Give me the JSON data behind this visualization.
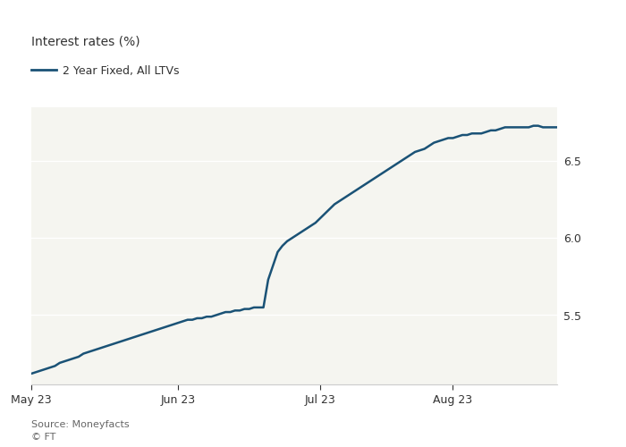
{
  "title": "Interest rates (%)",
  "legend_label": "2 Year Fixed, All LTVs",
  "line_color": "#1a5276",
  "background_color": "#ffffff",
  "plot_bg_color": "#f5f5f0",
  "grid_color": "#ffffff",
  "text_color": "#333333",
  "axis_color": "#cccccc",
  "source_text": "Source: Moneyfacts\n© FT",
  "yticks": [
    5.5,
    6.0,
    6.5
  ],
  "ylim": [
    5.05,
    6.85
  ],
  "x_tick_labels": [
    "May 23",
    "Jun 23",
    "Jul 23",
    "Aug 23"
  ],
  "x_tick_positions": [
    0,
    31,
    61,
    89
  ],
  "data_points": [
    5.12,
    5.13,
    5.14,
    5.15,
    5.16,
    5.17,
    5.19,
    5.2,
    5.21,
    5.22,
    5.23,
    5.25,
    5.26,
    5.27,
    5.28,
    5.29,
    5.3,
    5.31,
    5.32,
    5.33,
    5.34,
    5.35,
    5.36,
    5.37,
    5.38,
    5.39,
    5.4,
    5.41,
    5.42,
    5.43,
    5.44,
    5.45,
    5.46,
    5.47,
    5.47,
    5.48,
    5.48,
    5.49,
    5.49,
    5.5,
    5.51,
    5.52,
    5.52,
    5.53,
    5.53,
    5.54,
    5.54,
    5.55,
    5.55,
    5.55,
    5.73,
    5.82,
    5.91,
    5.95,
    5.98,
    6.0,
    6.02,
    6.04,
    6.06,
    6.08,
    6.1,
    6.13,
    6.16,
    6.19,
    6.22,
    6.24,
    6.26,
    6.28,
    6.3,
    6.32,
    6.34,
    6.36,
    6.38,
    6.4,
    6.42,
    6.44,
    6.46,
    6.48,
    6.5,
    6.52,
    6.54,
    6.56,
    6.57,
    6.58,
    6.6,
    6.62,
    6.63,
    6.64,
    6.65,
    6.65,
    6.66,
    6.67,
    6.67,
    6.68,
    6.68,
    6.68,
    6.69,
    6.7,
    6.7,
    6.71,
    6.72,
    6.72,
    6.72,
    6.72,
    6.72,
    6.72,
    6.73,
    6.73,
    6.72,
    6.72,
    6.72,
    6.72
  ]
}
